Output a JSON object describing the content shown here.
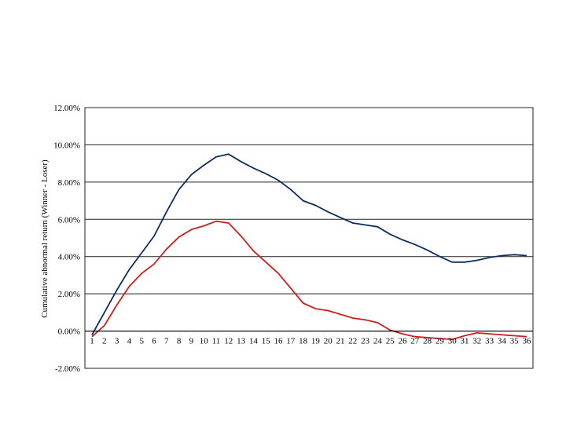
{
  "chart_data": {
    "type": "line",
    "title": "",
    "xlabel": "",
    "ylabel": "Cumulative abnormal return (Winner - Loser)",
    "x": [
      1,
      2,
      3,
      4,
      5,
      6,
      7,
      8,
      9,
      10,
      11,
      12,
      13,
      14,
      15,
      16,
      17,
      18,
      19,
      20,
      21,
      22,
      23,
      24,
      25,
      26,
      27,
      28,
      29,
      30,
      31,
      32,
      33,
      34,
      35,
      36
    ],
    "ylim": [
      -0.02,
      0.12
    ],
    "yticks": [
      {
        "value": -0.02,
        "label": "-2.00%"
      },
      {
        "value": 0.0,
        "label": "0.00%"
      },
      {
        "value": 0.02,
        "label": "2.00%"
      },
      {
        "value": 0.04,
        "label": "4.00%"
      },
      {
        "value": 0.06,
        "label": "6.00%"
      },
      {
        "value": 0.08,
        "label": "8.00%"
      },
      {
        "value": 0.1,
        "label": "10.00%"
      },
      {
        "value": 0.12,
        "label": "12.00%"
      }
    ],
    "grid": true,
    "series": [
      {
        "color": "#0d2d5e",
        "values": [
          -0.002,
          0.01,
          0.022,
          0.033,
          0.042,
          0.051,
          0.064,
          0.076,
          0.084,
          0.089,
          0.0935,
          0.095,
          0.091,
          0.0875,
          0.0845,
          0.081,
          0.076,
          0.07,
          0.0675,
          0.064,
          0.061,
          0.058,
          0.057,
          0.056,
          0.052,
          0.049,
          0.0465,
          0.0435,
          0.04,
          0.037,
          0.037,
          0.038,
          0.0395,
          0.0405,
          0.041,
          0.0405
        ]
      },
      {
        "color": "#cc1f1f",
        "values": [
          -0.003,
          0.003,
          0.014,
          0.024,
          0.031,
          0.036,
          0.044,
          0.0505,
          0.0545,
          0.0565,
          0.059,
          0.058,
          0.051,
          0.043,
          0.037,
          0.031,
          0.023,
          0.015,
          0.012,
          0.011,
          0.009,
          0.007,
          0.006,
          0.0045,
          0.0005,
          -0.0015,
          -0.003,
          -0.0035,
          -0.004,
          -0.0045,
          -0.0025,
          -0.001,
          -0.0015,
          -0.002,
          -0.0025,
          -0.003
        ]
      }
    ]
  }
}
